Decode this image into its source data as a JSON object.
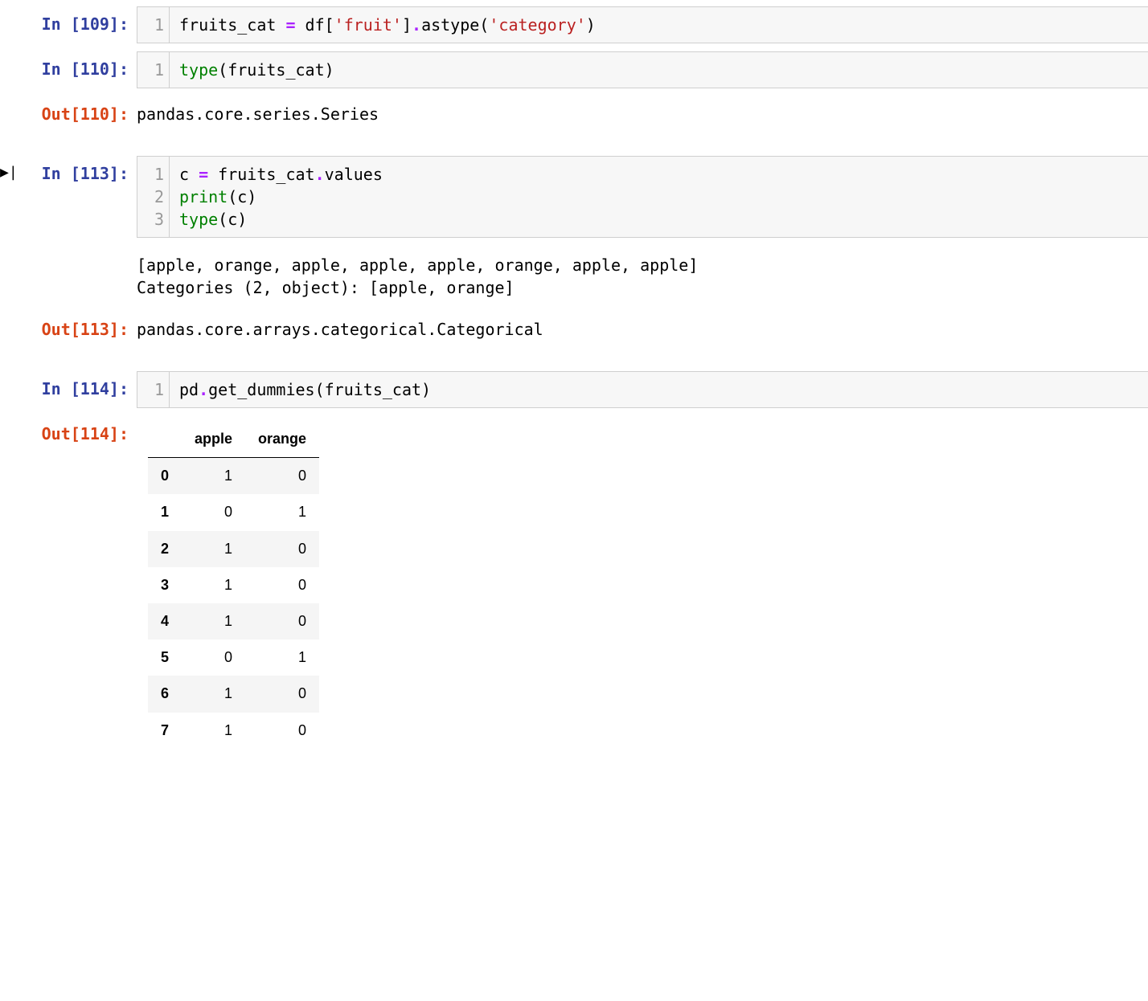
{
  "colors": {
    "in_prompt": "#303F9F",
    "out_prompt": "#D84315",
    "code_bg": "#f7f7f7",
    "code_border": "#cfcfcf",
    "gutter_text": "#999999",
    "tok_op": "#AA22FF",
    "tok_str": "#BA2121",
    "tok_builtin": "#008000",
    "df_row_odd": "#f5f5f5",
    "df_row_even": "#ffffff",
    "text": "#000000"
  },
  "cells": [
    {
      "in_label": "In [109]:",
      "lines": [
        {
          "n": "1",
          "tokens": [
            {
              "t": "fruits_cat ",
              "c": "name"
            },
            {
              "t": "=",
              "c": "op"
            },
            {
              "t": " df[",
              "c": "name"
            },
            {
              "t": "'fruit'",
              "c": "str"
            },
            {
              "t": "]",
              "c": "name"
            },
            {
              "t": ".",
              "c": "op"
            },
            {
              "t": "astype(",
              "c": "name"
            },
            {
              "t": "'category'",
              "c": "str"
            },
            {
              "t": ")",
              "c": "name"
            }
          ]
        }
      ]
    },
    {
      "in_label": "In [110]:",
      "lines": [
        {
          "n": "1",
          "tokens": [
            {
              "t": "type",
              "c": "builtin"
            },
            {
              "t": "(fruits_cat)",
              "c": "name"
            }
          ]
        }
      ],
      "out_label": "Out[110]:",
      "out_text": "pandas.core.series.Series"
    },
    {
      "in_label": "In [113]:",
      "active": true,
      "lines": [
        {
          "n": "1",
          "tokens": [
            {
              "t": "c ",
              "c": "name"
            },
            {
              "t": "=",
              "c": "op"
            },
            {
              "t": " fruits_cat",
              "c": "name"
            },
            {
              "t": ".",
              "c": "op"
            },
            {
              "t": "values",
              "c": "name"
            }
          ]
        },
        {
          "n": "2",
          "tokens": [
            {
              "t": "print",
              "c": "builtin"
            },
            {
              "t": "(c)",
              "c": "name"
            }
          ]
        },
        {
          "n": "3",
          "tokens": [
            {
              "t": "type",
              "c": "builtin"
            },
            {
              "t": "(c)",
              "c": "name"
            }
          ]
        }
      ],
      "stdout": "[apple, orange, apple, apple, apple, orange, apple, apple]\nCategories (2, object): [apple, orange]",
      "out_label": "Out[113]:",
      "out_text": "pandas.core.arrays.categorical.Categorical"
    },
    {
      "in_label": "In [114]:",
      "lines": [
        {
          "n": "1",
          "tokens": [
            {
              "t": "pd",
              "c": "name"
            },
            {
              "t": ".",
              "c": "op"
            },
            {
              "t": "get_dummies(fruits_cat)",
              "c": "name"
            }
          ]
        }
      ],
      "out_label": "Out[114]:",
      "dataframe": {
        "columns": [
          "apple",
          "orange"
        ],
        "index": [
          "0",
          "1",
          "2",
          "3",
          "4",
          "5",
          "6",
          "7"
        ],
        "rows": [
          [
            "1",
            "0"
          ],
          [
            "0",
            "1"
          ],
          [
            "1",
            "0"
          ],
          [
            "1",
            "0"
          ],
          [
            "1",
            "0"
          ],
          [
            "0",
            "1"
          ],
          [
            "1",
            "0"
          ],
          [
            "1",
            "0"
          ]
        ]
      }
    }
  ]
}
